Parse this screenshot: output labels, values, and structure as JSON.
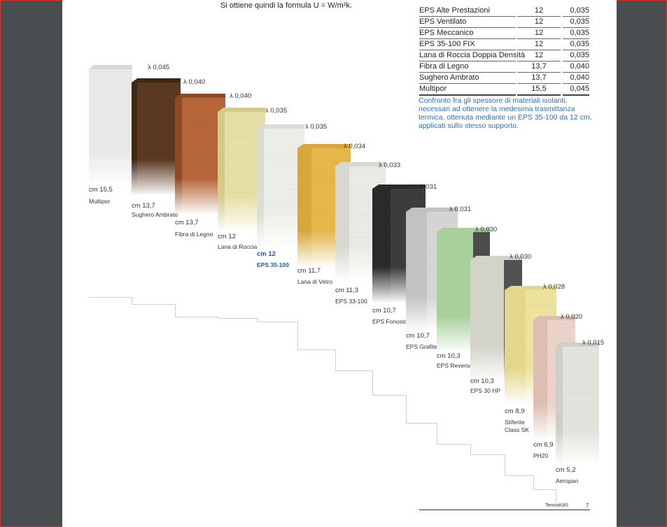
{
  "formula_text": "Si ottiene quindi la formula U = W/m²k.",
  "table": {
    "rows": [
      {
        "name": "EPS Alte Prestazioni",
        "thickness": "12",
        "lambda": "0,035"
      },
      {
        "name": "EPS Ventilato",
        "thickness": "12",
        "lambda": "0,035"
      },
      {
        "name": "EPS Meccanico",
        "thickness": "12",
        "lambda": "0,035"
      },
      {
        "name": "EPS 35-100 FIX",
        "thickness": "12",
        "lambda": "0,035"
      },
      {
        "name": "Lana di Roccia Doppia Densità",
        "thickness": "12",
        "lambda": "0,035"
      },
      {
        "name": "Fibra di Legno",
        "thickness": "13,7",
        "lambda": "0,040"
      },
      {
        "name": "Sughero Ambrato",
        "thickness": "13,7",
        "lambda": "0,040"
      },
      {
        "name": "Multipor",
        "thickness": "15,5",
        "lambda": "0,045"
      }
    ]
  },
  "note": "Confronto fra gli spessore di materiali isolanti, necessari ad ottenere la medesima trasmittanza termica, ottenuta mediante un EPS 35-100 da 12 cm, applicati sullo stesso supporto.",
  "materials": [
    {
      "lambda": "λ 0,045",
      "cm": "cm 15,5",
      "name": "Multipor",
      "color": "#ececec",
      "side": "#d8d8d8",
      "highlight": false
    },
    {
      "lambda": "λ 0,040",
      "cm": "cm 13,7",
      "name": "Sughero Ambrato",
      "color": "#5a3a22",
      "side": "#3e2816",
      "highlight": false
    },
    {
      "lambda": "λ 0,040",
      "cm": "cm 13,7",
      "name": "Fibra di Legno",
      "color": "#b8673a",
      "side": "#8e4a26",
      "highlight": false
    },
    {
      "lambda": "λ 0,035",
      "cm": "cm 12",
      "name": "Lana di Roccia",
      "color": "#e9e2a8",
      "side": "#d4cb8a",
      "highlight": false
    },
    {
      "lambda": "λ 0,035",
      "cm": "cm 12",
      "name": "EPS 35-100",
      "color": "#f1f1ec",
      "side": "#dcdcd6",
      "highlight": true
    },
    {
      "lambda": "λ 0,034",
      "cm": "cm 11,7",
      "name": "Lana di Vetro",
      "color": "#e9b94b",
      "side": "#d9a63a",
      "highlight": false
    },
    {
      "lambda": "λ 0,033",
      "cm": "cm 11,3",
      "name": "EPS 33-100",
      "color": "#eeeee9",
      "side": "#d8d8d2",
      "highlight": false
    },
    {
      "lambda": "λ 0,031",
      "cm": "cm 10,7",
      "name": "EPS Fonostop",
      "color": "#3d3d3d",
      "side": "#2a2a2a",
      "highlight": false
    },
    {
      "lambda": "λ 0,031",
      "cm": "cm 10,7",
      "name": "EPS Grafite",
      "color": "#d8d8d8",
      "side": "#c2c2c2",
      "highlight": false
    },
    {
      "lambda": "λ 0,030",
      "cm": "cm 10,3",
      "name": "EPS Reverso",
      "color": "#4d4d4d",
      "side": "#a9cf9c",
      "highlight": false
    },
    {
      "lambda": "λ 0,030",
      "cm": "cm 10,3",
      "name": "EPS 30 HP",
      "color": "#535353",
      "side": "#d3d3c8",
      "highlight": false
    },
    {
      "lambda": "λ 0,028",
      "cm": "cm 8,9",
      "name": "Stiferite Class SK",
      "color": "#f0e6a0",
      "side": "#e2d78a",
      "highlight": false
    },
    {
      "lambda": "λ 0,020",
      "cm": "cm 6,9",
      "name": "PH20",
      "color": "#efd6cc",
      "side": "#ddbfb2",
      "highlight": false
    },
    {
      "lambda": "λ 0,015",
      "cm": "cm 5,2",
      "name": "Aeropan",
      "color": "#e6e6e0",
      "side": "#cfcfc8",
      "highlight": false
    }
  ],
  "footer": {
    "brand": "TermoK8®",
    "page": "7"
  }
}
